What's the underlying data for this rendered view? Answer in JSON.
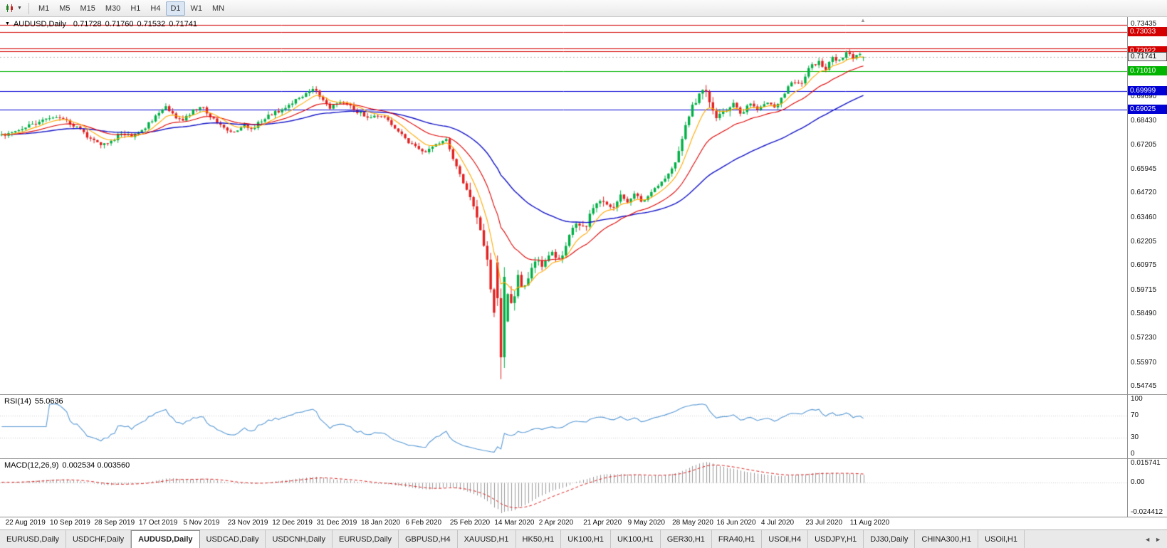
{
  "toolbar": {
    "timeframes": [
      "M1",
      "M5",
      "M15",
      "M30",
      "H1",
      "H4",
      "D1",
      "W1",
      "MN"
    ],
    "active_timeframe": "D1"
  },
  "chart_header": {
    "symbol_period": "AUDUSD,Daily",
    "open": "0.71728",
    "high": "0.71760",
    "low": "0.71532",
    "close": "0.71741"
  },
  "icons": {
    "title_caret": "▼",
    "toolbar_caret": "▼",
    "shift_marker": "▲"
  },
  "price_axis": {
    "plain_labels": [
      {
        "text": "0.73435",
        "price": 0.73435
      },
      {
        "text": "0.69690",
        "price": 0.6969
      },
      {
        "text": "0.68430",
        "price": 0.6843
      },
      {
        "text": "0.67205",
        "price": 0.67205
      },
      {
        "text": "0.65945",
        "price": 0.65945
      },
      {
        "text": "0.64720",
        "price": 0.6472
      },
      {
        "text": "0.63460",
        "price": 0.6346
      },
      {
        "text": "0.62205",
        "price": 0.62205
      },
      {
        "text": "0.60975",
        "price": 0.60975
      },
      {
        "text": "0.59715",
        "price": 0.59715
      },
      {
        "text": "0.58490",
        "price": 0.5849
      },
      {
        "text": "0.57230",
        "price": 0.5723
      },
      {
        "text": "0.55970",
        "price": 0.5597
      },
      {
        "text": "0.54745",
        "price": 0.54745
      }
    ],
    "tags": [
      {
        "text": "0.73033",
        "price": 0.73033,
        "type": "level",
        "bg": "#d40000"
      },
      {
        "text": "0.72022",
        "price": 0.72022,
        "type": "level",
        "bg": "#d40000"
      },
      {
        "text": "0.71741",
        "price": 0.71741,
        "type": "current",
        "bg": "#efefef"
      },
      {
        "text": "0.71010",
        "price": 0.7101,
        "type": "level",
        "bg": "#00b400"
      },
      {
        "text": "0.69999",
        "price": 0.69999,
        "type": "level",
        "bg": "#0000d4"
      },
      {
        "text": "0.69025",
        "price": 0.69025,
        "type": "level",
        "bg": "#0000d4"
      }
    ]
  },
  "hlines": [
    {
      "price": 0.734,
      "color": "#d40000"
    },
    {
      "price": 0.73033,
      "color": "#d40000"
    },
    {
      "price": 0.7217,
      "color": "#d40000"
    },
    {
      "price": 0.72022,
      "color": "#d40000"
    },
    {
      "price": 0.7101,
      "color": "#00b400"
    },
    {
      "price": 0.69999,
      "color": "#0000d4"
    },
    {
      "price": 0.69025,
      "color": "#0000d4"
    }
  ],
  "rsi_panel": {
    "title": "RSI(14)",
    "value": "55.0636",
    "axis_labels": [
      "100",
      "70",
      "30",
      "0"
    ],
    "levels": [
      70,
      30
    ],
    "line_color": "#5b9bd5"
  },
  "macd_panel": {
    "title": "MACD(12,26,9)",
    "values": "0.002534 0.003560",
    "scale_max": 0.015741,
    "scale_min": -0.024412,
    "axis_labels": [
      {
        "text": "0.015741",
        "value": 0.015741
      },
      {
        "text": "0.00",
        "value": 0
      },
      {
        "text": "-0.024412",
        "value": -0.024412
      }
    ],
    "hist_color": "#9a9a9a",
    "signal_color": "#dd2222"
  },
  "date_axis": {
    "labels": [
      "22 Aug 2019",
      "10 Sep 2019",
      "28 Sep 2019",
      "17 Oct 2019",
      "5 Nov 2019",
      "23 Nov 2019",
      "12 Dec 2019",
      "31 Dec 2019",
      "18 Jan 2020",
      "6 Feb 2020",
      "25 Feb 2020",
      "14 Mar 2020",
      "2 Apr 2020",
      "21 Apr 2020",
      "9 May 2020",
      "28 May 2020",
      "16 Jun 2020",
      "4 Jul 2020",
      "23 Jul 2020",
      "11 Aug 2020"
    ]
  },
  "tabs": {
    "items": [
      "EURUSD,Daily",
      "USDCHF,Daily",
      "AUDUSD,Daily",
      "USDCAD,Daily",
      "USDCNH,Daily",
      "EURUSD,Daily",
      "GBPUSD,H4",
      "XAUUSD,H1",
      "HK50,H1",
      "UK100,H1",
      "UK100,H1",
      "GER30,H1",
      "FRA40,H1",
      "USOil,H4",
      "USDJPY,H1",
      "DJ30,Daily",
      "CHINA300,H1",
      "USOil,H1"
    ],
    "active_index": 2,
    "scroll_icons": [
      "◄",
      "►"
    ]
  },
  "colors": {
    "bull": "#00b045",
    "bear": "#e32020",
    "ma_fast": "#ffaa00",
    "ma_mid": "#e00000",
    "ma_slow": "#1414c8",
    "background": "#ffffff"
  },
  "chart_data": {
    "type": "candlestick",
    "symbol": "AUDUSD",
    "period": "Daily",
    "num_bars": 253,
    "x_range": [
      "22 Aug 2019",
      "20 Aug 2020"
    ],
    "y_axis": {
      "max": 0.73435,
      "min": 0.54745
    },
    "last_bar": {
      "open": 0.71728,
      "high": 0.7176,
      "low": 0.71532,
      "close": 0.71741
    },
    "crash_low": 0.5512,
    "horizontal_levels": [
      0.734,
      0.73033,
      0.7217,
      0.72022,
      0.7101,
      0.69999,
      0.69025
    ],
    "moving_averages": [
      {
        "period": 8,
        "color": "#ffaa00"
      },
      {
        "period": 21,
        "color": "#e00000"
      },
      {
        "period": 55,
        "color": "#1414c8"
      }
    ],
    "indicators": {
      "rsi": {
        "period": 14,
        "last": 55.0636,
        "levels": [
          70,
          30
        ]
      },
      "macd": {
        "fast": 12,
        "slow": 26,
        "signal": 9,
        "last_macd": 0.002534,
        "last_signal": 0.00356,
        "axis_max": 0.015741,
        "axis_min": -0.024412
      }
    },
    "price_path_anchors": {
      "t": [
        0.0,
        0.02,
        0.045,
        0.06,
        0.075,
        0.09,
        0.105,
        0.118,
        0.13,
        0.138,
        0.15,
        0.16,
        0.17,
        0.182,
        0.191,
        0.2,
        0.21,
        0.222,
        0.234,
        0.245,
        0.258,
        0.27,
        0.28,
        0.29,
        0.3,
        0.312,
        0.325,
        0.34,
        0.355,
        0.363,
        0.372,
        0.38,
        0.39,
        0.4,
        0.412,
        0.425,
        0.437,
        0.448,
        0.46,
        0.472,
        0.482,
        0.492,
        0.503,
        0.515,
        0.527,
        0.538,
        0.548,
        0.556,
        0.564,
        0.57,
        0.575,
        0.579,
        0.583,
        0.588,
        0.593,
        0.598,
        0.605,
        0.612,
        0.62,
        0.628,
        0.638,
        0.648,
        0.658,
        0.668,
        0.678,
        0.688,
        0.698,
        0.708,
        0.718,
        0.726,
        0.735,
        0.745,
        0.755,
        0.765,
        0.775,
        0.782,
        0.79,
        0.798,
        0.808,
        0.815,
        0.822,
        0.83,
        0.84,
        0.85,
        0.858,
        0.868,
        0.878,
        0.888,
        0.898,
        0.908,
        0.918,
        0.928,
        0.938,
        0.948,
        0.956,
        0.964,
        0.972,
        0.98,
        0.988,
        0.994,
        1.0
      ],
      "price": [
        0.677,
        0.679,
        0.685,
        0.686,
        0.684,
        0.68,
        0.6745,
        0.672,
        0.6745,
        0.679,
        0.676,
        0.678,
        0.683,
        0.688,
        0.692,
        0.687,
        0.685,
        0.6895,
        0.6915,
        0.6855,
        0.68,
        0.6795,
        0.682,
        0.68,
        0.6845,
        0.688,
        0.6905,
        0.6945,
        0.6985,
        0.701,
        0.696,
        0.6905,
        0.694,
        0.693,
        0.6895,
        0.686,
        0.687,
        0.685,
        0.68,
        0.6735,
        0.67,
        0.6685,
        0.672,
        0.6755,
        0.662,
        0.65,
        0.638,
        0.628,
        0.61,
        0.588,
        0.576,
        0.562,
        0.578,
        0.6,
        0.585,
        0.608,
        0.598,
        0.605,
        0.612,
        0.61,
        0.617,
        0.613,
        0.625,
        0.632,
        0.63,
        0.642,
        0.644,
        0.639,
        0.6465,
        0.642,
        0.647,
        0.642,
        0.649,
        0.653,
        0.656,
        0.665,
        0.677,
        0.688,
        0.697,
        0.701,
        0.694,
        0.685,
        0.69,
        0.693,
        0.688,
        0.693,
        0.69,
        0.695,
        0.692,
        0.699,
        0.705,
        0.704,
        0.712,
        0.715,
        0.711,
        0.718,
        0.715,
        0.72,
        0.716,
        0.719,
        0.7174
      ]
    }
  }
}
